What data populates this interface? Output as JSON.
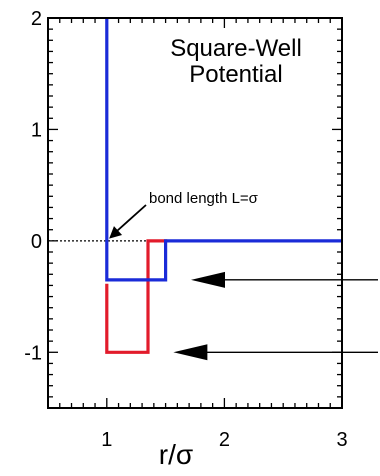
{
  "chart_data": {
    "type": "line",
    "title": [
      "Square-Well",
      "Potential"
    ],
    "xlabel": "r/σ",
    "ylabel": "",
    "xlim": [
      0.5,
      3
    ],
    "ylim": [
      -1.5,
      2
    ],
    "x_ticks": [
      1,
      2,
      3
    ],
    "y_ticks": [
      2,
      1,
      0,
      -1
    ],
    "x_tick_labels": [
      "1",
      "2",
      "3"
    ],
    "y_tick_labels": [
      "2",
      "1",
      "0",
      "-1"
    ],
    "grid": false,
    "legend": "none",
    "zero_line": true,
    "series": [
      {
        "color": "#1a2bd8",
        "x": [
          1,
          1,
          1.5,
          1.5,
          3
        ],
        "y": [
          2,
          -0.35,
          -0.35,
          0,
          0
        ]
      },
      {
        "color": "#e21b2b",
        "x": [
          1,
          1,
          1.35,
          1.35,
          1.5
        ],
        "y": [
          -0.4,
          -1,
          -1,
          0,
          0
        ]
      }
    ],
    "annotations": [
      {
        "text": "bond length L=σ",
        "x": 1.53,
        "y": 0.38,
        "arrow_to": [
          1.02,
          0.02
        ]
      }
    ],
    "pointer_arrows": [
      {
        "at_y": -0.35,
        "from_x": 2.45,
        "to_x": 1.75
      },
      {
        "at_y": -1.0,
        "from_x": 2.45,
        "to_x": 1.6
      }
    ]
  }
}
